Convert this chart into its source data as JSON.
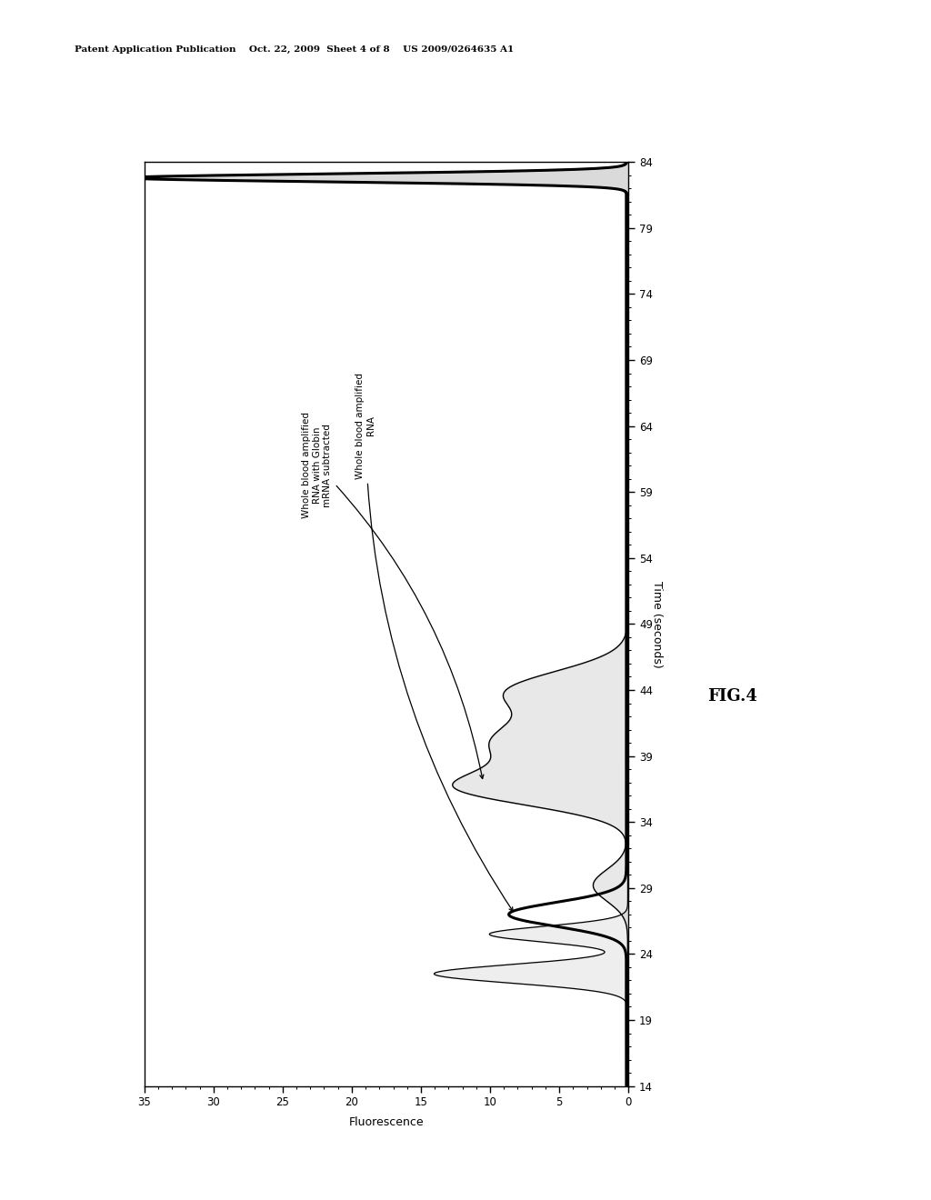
{
  "title_header": "Patent Application Publication    Oct. 22, 2009  Sheet 4 of 8    US 2009/0264635 A1",
  "fig_label": "FIG.4",
  "xlabel_rotated": "Time (seconds)",
  "ylabel_rotated": "Fluorescence",
  "x_ticks": [
    14,
    19,
    24,
    29,
    34,
    39,
    44,
    49,
    54,
    59,
    64,
    69,
    74,
    79,
    84
  ],
  "y_ticks": [
    0,
    5,
    10,
    15,
    20,
    25,
    30,
    35
  ],
  "background_color": "#ffffff",
  "annotation1": "Whole blood amplified\nRNA",
  "annotation2": "Whole blood amplified\nRNA with Globin\nmRNA subtracted"
}
